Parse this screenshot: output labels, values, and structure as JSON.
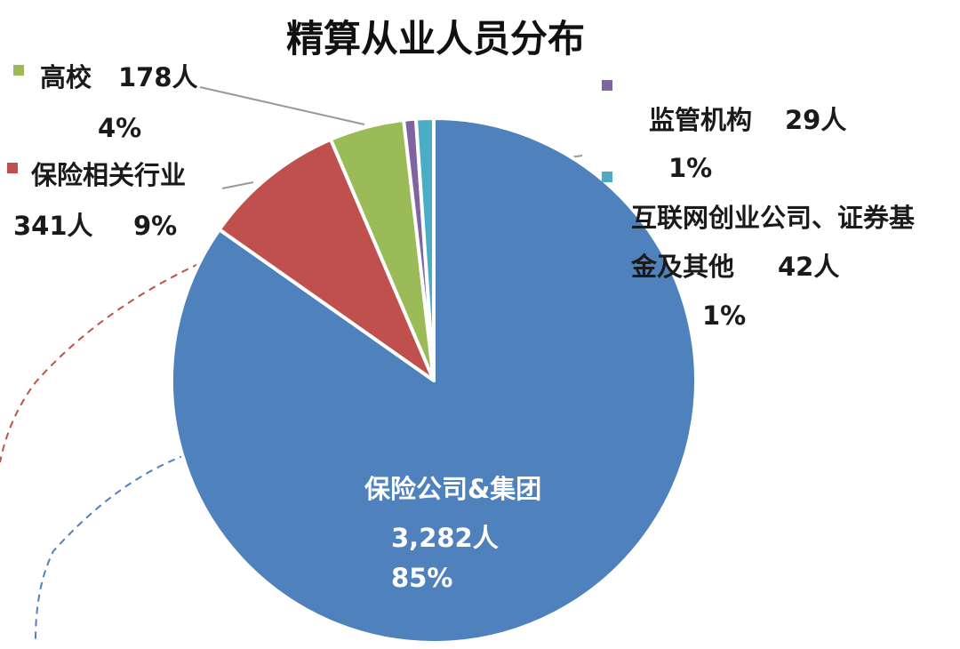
{
  "chart_data": {
    "type": "pie",
    "title": "精算从业人员分布",
    "categories": [
      "保险公司&集团",
      "保险相关行业",
      "高校",
      "监管机构",
      "互联网创业公司、证券基金及其他"
    ],
    "values": [
      3282,
      341,
      178,
      29,
      42
    ],
    "value_labels": [
      "3,282人",
      "341人",
      "178人",
      "29人",
      "42人"
    ],
    "percent_labels": [
      "85%",
      "9%",
      "4%",
      "1%",
      "1%"
    ],
    "colors": [
      "#4f81bd",
      "#c0504d",
      "#9bbb59",
      "#8064a2",
      "#4bacc6"
    ]
  }
}
